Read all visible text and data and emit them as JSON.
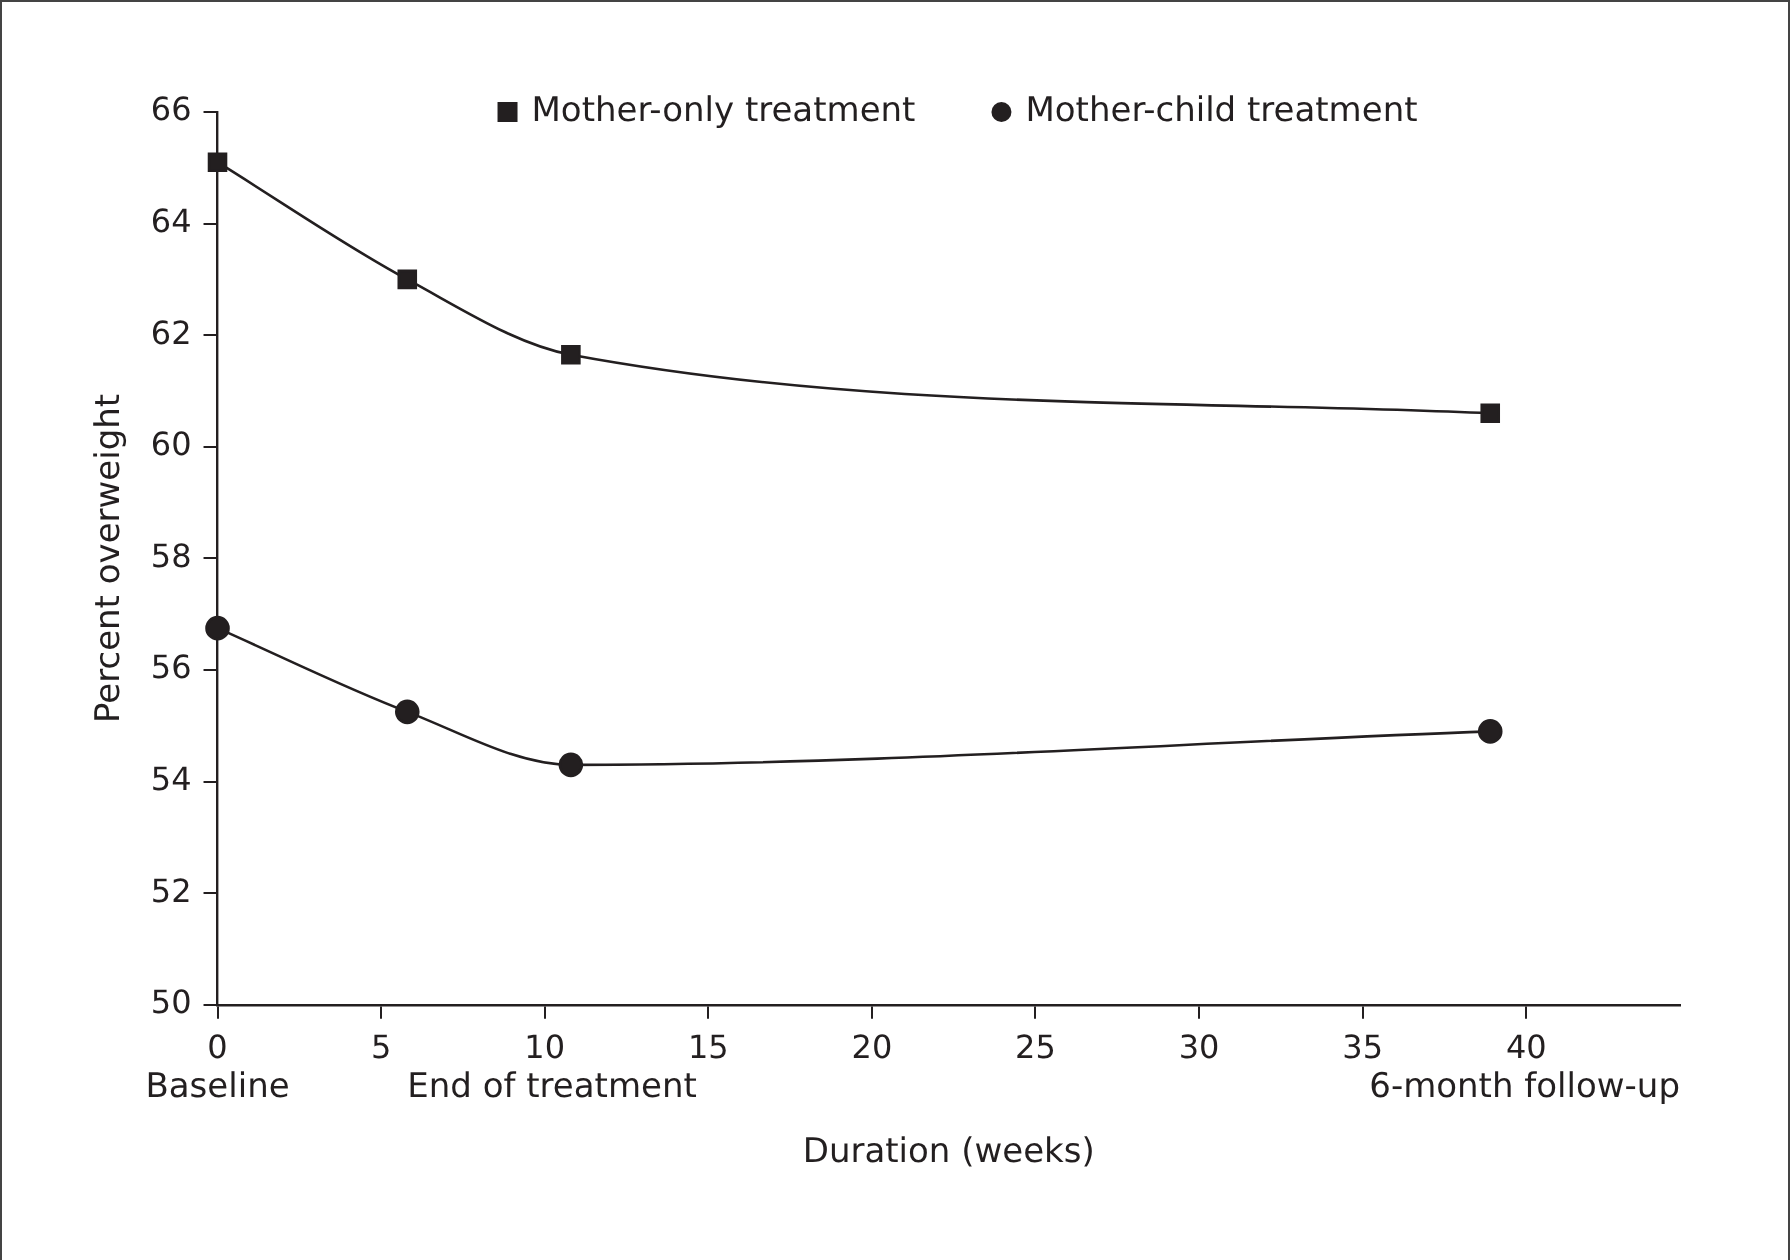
{
  "chart_data": {
    "type": "line",
    "xlabel": "Duration (weeks)",
    "ylabel": "Percent overweight",
    "xlim": [
      0,
      44.7
    ],
    "xticks": [
      0,
      5,
      10,
      15,
      20,
      25,
      30,
      35,
      40
    ],
    "ylim": [
      50,
      66
    ],
    "yticks": [
      50,
      52,
      54,
      56,
      58,
      60,
      62,
      64,
      66
    ],
    "x": [
      0,
      5.8,
      10.8,
      38.9
    ],
    "series": [
      {
        "name": "Mother-only treatment",
        "color": "#231f20",
        "marker": "square",
        "values": [
          65.1,
          63.0,
          61.65,
          60.6
        ]
      },
      {
        "name": "Mother-child treatment",
        "color": "#231f20",
        "marker": "circle",
        "values": [
          56.75,
          55.25,
          54.3,
          54.9
        ]
      }
    ],
    "annotations": [
      "Baseline",
      "End of treatment",
      "6-month follow-up"
    ],
    "legend": "top",
    "grid": false,
    "line_style": "solid"
  }
}
